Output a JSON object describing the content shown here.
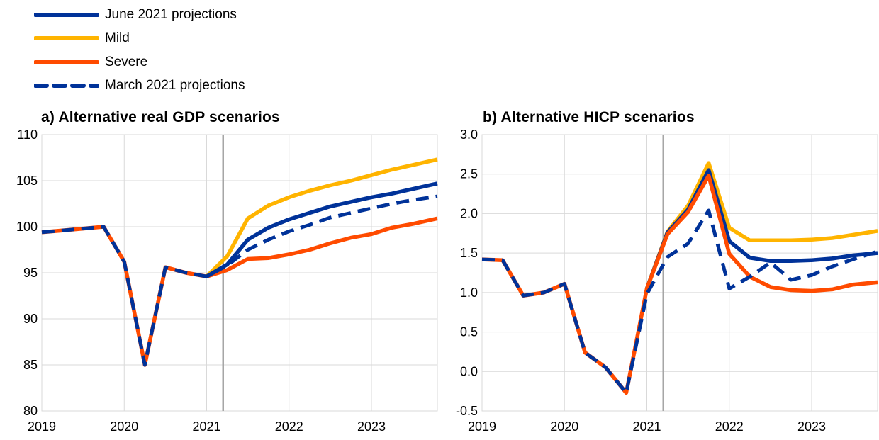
{
  "legend": [
    {
      "name": "June 2021 projections",
      "color": "#003299",
      "dash": false
    },
    {
      "name": "Mild",
      "color": "#FFB400",
      "dash": false
    },
    {
      "name": "Severe",
      "color": "#FF4B00",
      "dash": false
    },
    {
      "name": "March 2021 projections",
      "color": "#003299",
      "dash": true
    }
  ],
  "chart_data": [
    {
      "type": "line",
      "title": "a) Alternative real GDP scenarios",
      "xlabel": "",
      "ylabel": "",
      "xlim": [
        2019,
        2023.8
      ],
      "ylim": [
        80,
        110
      ],
      "yticks": [
        80,
        85,
        90,
        95,
        100,
        105,
        110
      ],
      "ytick_labels": [
        "80",
        "85",
        "90",
        "95",
        "100",
        "105",
        "110"
      ],
      "xticks": [
        2019,
        2020,
        2021,
        2022,
        2023
      ],
      "xtick_labels": [
        "2019",
        "2020",
        "2021",
        "2022",
        "2023"
      ],
      "vline_x": 2021.2,
      "grid": true,
      "series": [
        {
          "name": "Severe",
          "color": "#FF4B00",
          "dash": false,
          "x": [
            2019,
            2019.25,
            2019.5,
            2019.75,
            2020,
            2020.25,
            2020.5,
            2020.75,
            2021,
            2021.25,
            2021.5,
            2021.75,
            2022,
            2022.25,
            2022.5,
            2022.75,
            2023,
            2023.25,
            2023.5,
            2023.8
          ],
          "y": [
            99.4,
            99.6,
            99.8,
            100.0,
            96.2,
            85.0,
            95.6,
            95.0,
            94.6,
            95.3,
            96.5,
            96.6,
            97.0,
            97.5,
            98.2,
            98.8,
            99.2,
            99.9,
            100.3,
            100.9
          ]
        },
        {
          "name": "Mild",
          "color": "#FFB400",
          "dash": false,
          "x": [
            2021,
            2021.25,
            2021.5,
            2021.75,
            2022,
            2022.25,
            2022.5,
            2022.75,
            2023,
            2023.25,
            2023.5,
            2023.8
          ],
          "y": [
            94.6,
            96.8,
            100.9,
            102.3,
            103.2,
            103.9,
            104.5,
            105.0,
            105.6,
            106.2,
            106.7,
            107.3
          ]
        },
        {
          "name": "June 2021 projections",
          "color": "#003299",
          "dash": false,
          "x": [
            2021,
            2021.25,
            2021.5,
            2021.75,
            2022,
            2022.25,
            2022.5,
            2022.75,
            2023,
            2023.25,
            2023.5,
            2023.8
          ],
          "y": [
            94.6,
            95.9,
            98.6,
            99.9,
            100.8,
            101.5,
            102.2,
            102.7,
            103.2,
            103.6,
            104.1,
            104.7
          ]
        },
        {
          "name": "March 2021 projections",
          "color": "#003299",
          "dash": true,
          "x": [
            2019,
            2019.25,
            2019.5,
            2019.75,
            2020,
            2020.25,
            2020.5,
            2020.75,
            2021,
            2021.25,
            2021.5,
            2021.75,
            2022,
            2022.25,
            2022.5,
            2022.75,
            2023,
            2023.25,
            2023.5,
            2023.8
          ],
          "y": [
            99.4,
            99.6,
            99.8,
            100.0,
            96.2,
            85.0,
            95.6,
            95.0,
            94.6,
            95.8,
            97.5,
            98.6,
            99.5,
            100.2,
            101.0,
            101.5,
            102.0,
            102.5,
            102.9,
            103.3
          ]
        }
      ]
    },
    {
      "type": "line",
      "title": "b) Alternative HICP scenarios",
      "xlabel": "",
      "ylabel": "",
      "xlim": [
        2019,
        2023.8
      ],
      "ylim": [
        -0.5,
        3.0
      ],
      "yticks": [
        -0.5,
        0.0,
        0.5,
        1.0,
        1.5,
        2.0,
        2.5,
        3.0
      ],
      "ytick_labels": [
        "-0.5",
        "0.0",
        "0.5",
        "1.0",
        "1.5",
        "2.0",
        "2.5",
        "3.0"
      ],
      "xticks": [
        2019,
        2020,
        2021,
        2022,
        2023
      ],
      "xtick_labels": [
        "2019",
        "2020",
        "2021",
        "2022",
        "2023"
      ],
      "vline_x": 2021.2,
      "grid": true,
      "series": [
        {
          "name": "Mild",
          "color": "#FFB400",
          "dash": false,
          "x": [
            2021,
            2021.25,
            2021.5,
            2021.75,
            2022,
            2022.25,
            2022.5,
            2022.75,
            2023,
            2023.25,
            2023.5,
            2023.8
          ],
          "y": [
            1.05,
            1.77,
            2.1,
            2.64,
            1.82,
            1.66,
            1.66,
            1.66,
            1.67,
            1.69,
            1.73,
            1.78
          ]
        },
        {
          "name": "June 2021 projections",
          "color": "#003299",
          "dash": false,
          "x": [
            2021,
            2021.25,
            2021.5,
            2021.75,
            2022,
            2022.25,
            2022.5,
            2022.75,
            2023,
            2023.25,
            2023.5,
            2023.8
          ],
          "y": [
            1.05,
            1.76,
            2.05,
            2.55,
            1.65,
            1.44,
            1.4,
            1.4,
            1.41,
            1.43,
            1.47,
            1.5
          ]
        },
        {
          "name": "Severe",
          "color": "#FF4B00",
          "dash": false,
          "x": [
            2019,
            2019.25,
            2019.5,
            2019.75,
            2020,
            2020.25,
            2020.5,
            2020.75,
            2021,
            2021.25,
            2021.5,
            2021.75,
            2022,
            2022.25,
            2022.5,
            2022.75,
            2023,
            2023.25,
            2023.5,
            2023.8
          ],
          "y": [
            1.42,
            1.41,
            0.96,
            1.0,
            1.11,
            0.24,
            0.05,
            -0.27,
            1.05,
            1.74,
            2.02,
            2.48,
            1.49,
            1.2,
            1.07,
            1.03,
            1.02,
            1.04,
            1.1,
            1.13
          ]
        },
        {
          "name": "March 2021 projections",
          "color": "#003299",
          "dash": true,
          "x": [
            2019,
            2019.25,
            2019.5,
            2019.75,
            2020,
            2020.25,
            2020.5,
            2020.75,
            2021,
            2021.25,
            2021.5,
            2021.75,
            2022,
            2022.25,
            2022.5,
            2022.75,
            2023,
            2023.25,
            2023.5,
            2023.8
          ],
          "y": [
            1.42,
            1.41,
            0.96,
            1.0,
            1.11,
            0.24,
            0.05,
            -0.27,
            0.98,
            1.45,
            1.62,
            2.04,
            1.05,
            1.2,
            1.38,
            1.16,
            1.22,
            1.33,
            1.42,
            1.52
          ]
        }
      ]
    }
  ]
}
